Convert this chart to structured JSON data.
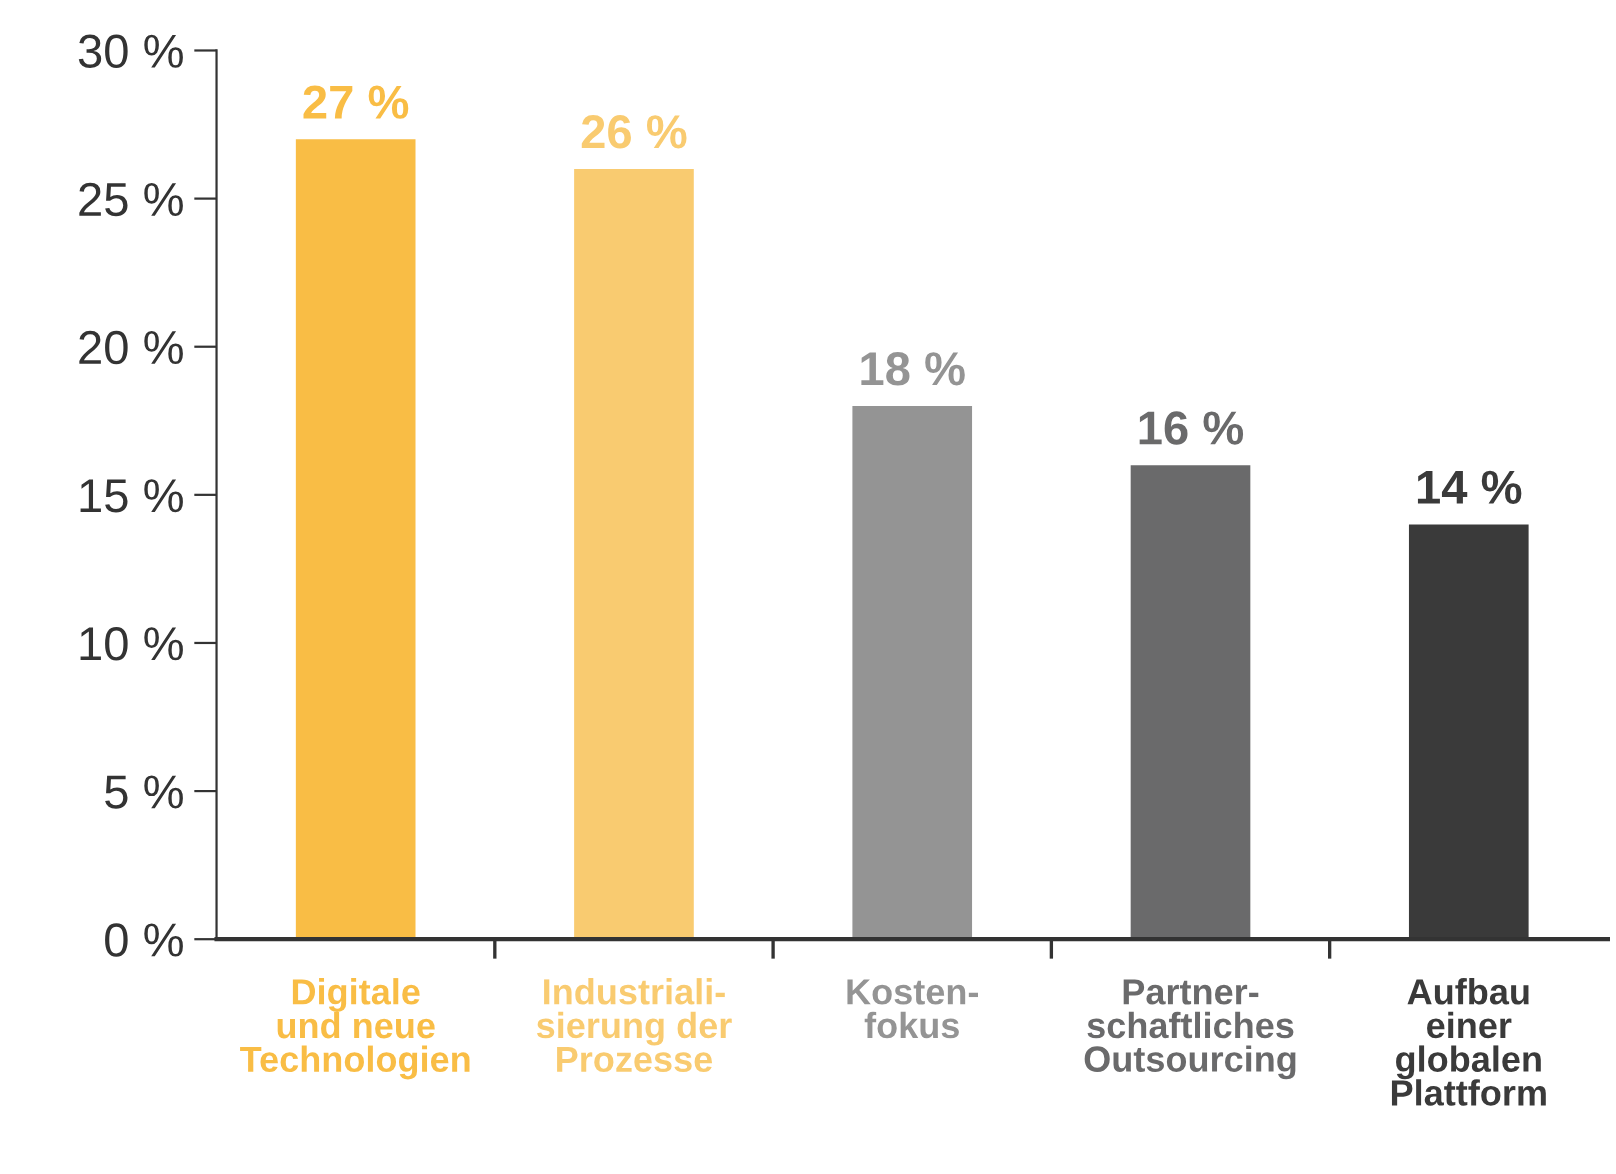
{
  "chart_data": {
    "type": "bar",
    "categories": [
      "Digitale\nund neue\nTechnologien",
      "Industriali-\nsierung der\nProzesse",
      "Kosten-\nfokus",
      "Partner-\nschaftliches\nOutsourcing",
      "Aufbau\neiner\nglobalen\nPlattform"
    ],
    "values": [
      27,
      26,
      18,
      16,
      14
    ],
    "colors": [
      "#f9bd45",
      "#f9cb70",
      "#949494",
      "#6a6a6b",
      "#3a3a3a"
    ],
    "value_labels": [
      "27 %",
      "26 %",
      "18 %",
      "16 %",
      "14 %"
    ],
    "ylim": [
      0,
      30
    ],
    "yticks": [
      {
        "value": 0,
        "label": "0 %"
      },
      {
        "value": 5,
        "label": "5 %"
      },
      {
        "value": 10,
        "label": "10 %"
      },
      {
        "value": 15,
        "label": "15 %"
      },
      {
        "value": 20,
        "label": "20 %"
      },
      {
        "value": 25,
        "label": "25 %"
      },
      {
        "value": 30,
        "label": "30 %"
      }
    ],
    "grid": false,
    "legend": false
  }
}
